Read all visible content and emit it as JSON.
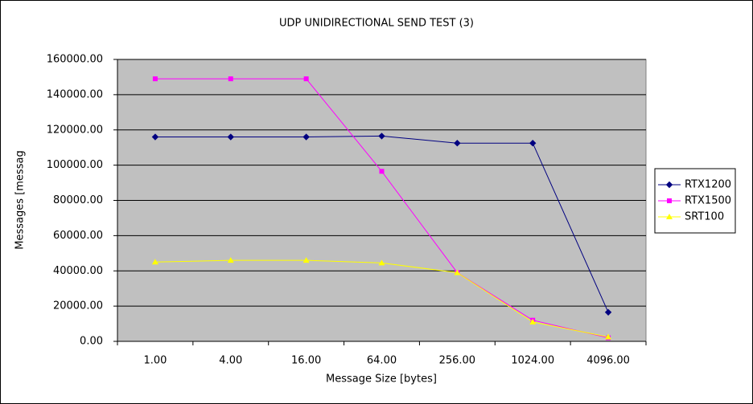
{
  "chart_data": {
    "type": "line",
    "title": "UDP UNIDIRECTIONAL SEND TEST (3)",
    "x_label": "Message Size [bytes]",
    "y_label": "Messages [messag",
    "categories": [
      "1.00",
      "4.00",
      "16.00",
      "64.00",
      "256.00",
      "1024.00",
      "4096.00"
    ],
    "series": [
      {
        "name": "RTX1200",
        "color": "#000080",
        "marker": "diamond",
        "values": [
          116000,
          116000,
          116000,
          116500,
          112500,
          112500,
          16500
        ]
      },
      {
        "name": "RTX1500",
        "color": "#ff00ff",
        "marker": "square",
        "values": [
          149000,
          149000,
          149000,
          96500,
          39000,
          12000,
          2000
        ]
      },
      {
        "name": "SRT100",
        "color": "#ffff00",
        "marker": "triangle",
        "values": [
          45000,
          46000,
          46000,
          44500,
          39000,
          11000,
          2500
        ]
      }
    ],
    "ylim": [
      0,
      160000
    ],
    "yticks": [
      {
        "value": 0,
        "label": "0.00"
      },
      {
        "value": 20000,
        "label": "20000.00"
      },
      {
        "value": 40000,
        "label": "40000.00"
      },
      {
        "value": 60000,
        "label": "60000.00"
      },
      {
        "value": 80000,
        "label": "80000.00"
      },
      {
        "value": 100000,
        "label": "100000.00"
      },
      {
        "value": 120000,
        "label": "120000.00"
      },
      {
        "value": 140000,
        "label": "140000.00"
      },
      {
        "value": 160000,
        "label": "160000.00"
      }
    ],
    "grid": true,
    "legend": "right"
  }
}
